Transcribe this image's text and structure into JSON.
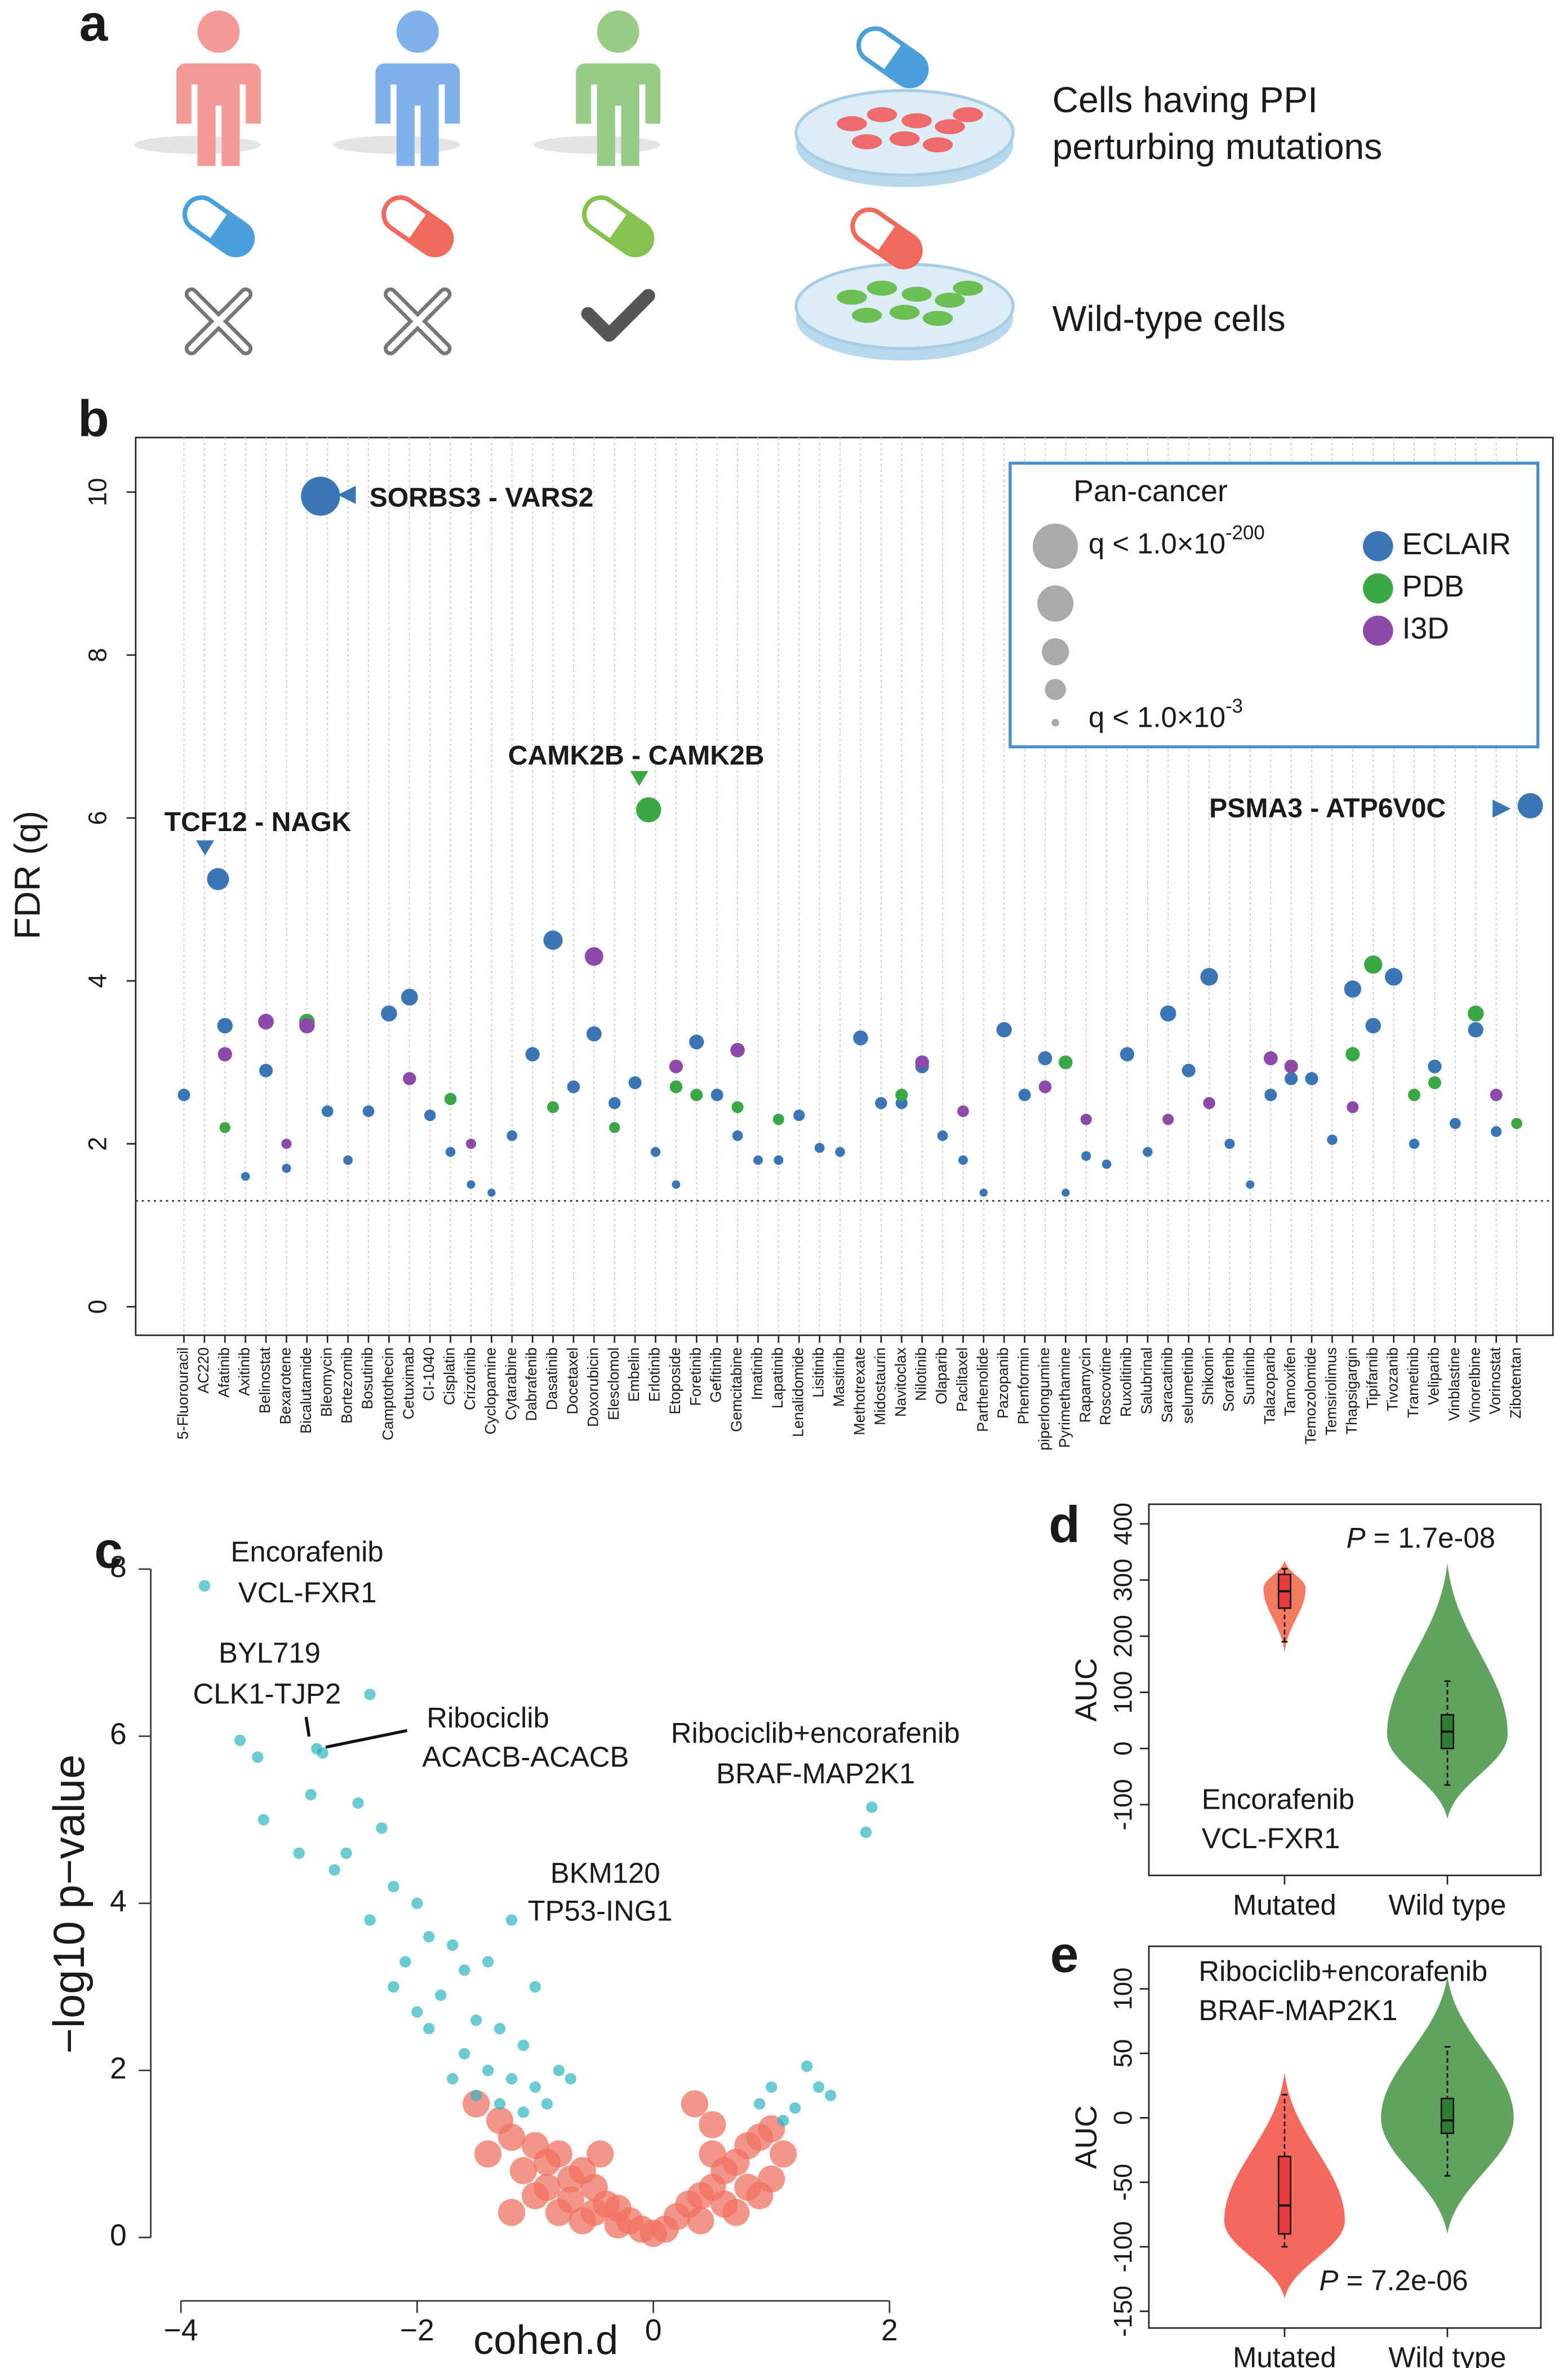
{
  "panel_a": {
    "panel_label": "a",
    "mutant_text": [
      "Cells having PPI",
      "perturbing mutations"
    ],
    "wildtype_text": "Wild-type cells"
  },
  "chart_data": [
    {
      "type": "strip",
      "panel_label": "b",
      "ylabel": "FDR (q)",
      "categories": [
        "5-Fluorouracil",
        "AC220",
        "Afatinib",
        "Axitinib",
        "Belinostat",
        "Bexarotene",
        "Bicalutamide",
        "Bleomycin",
        "Bortezomib",
        "Bosutinib",
        "Camptothecin",
        "Cetuximab",
        "CI-1040",
        "Cisplatin",
        "Crizotinib",
        "Cyclopamine",
        "Cytarabine",
        "Dabrafenib",
        "Dasatinib",
        "Docetaxel",
        "Doxorubicin",
        "Elesclomol",
        "Embelin",
        "Erlotinib",
        "Etoposide",
        "Foretinib",
        "Gefitinib",
        "Gemcitabine",
        "Imatinib",
        "Lapatinib",
        "Lenalidomide",
        "Lisitinib",
        "Masitinib",
        "Methotrexate",
        "Midostaurin",
        "Navitoclax",
        "Nilotinib",
        "Olaparib",
        "Paclitaxel",
        "Parthenolide",
        "Pazopanib",
        "Phenformin",
        "piperlongumine",
        "Pyrimethamine",
        "Rapamycin",
        "Roscovitine",
        "Ruxolitinib",
        "Salubrinal",
        "Saracatinib",
        "selumetinib",
        "Shikonin",
        "Sorafenib",
        "Sunitinib",
        "Talazoparib",
        "Tamoxifen",
        "Temozolomide",
        "Temsirolimus",
        "Thapsigargin",
        "Tipifarnib",
        "Tivozanib",
        "Trametinib",
        "Veliparib",
        "Vinblastine",
        "Vinorelbine",
        "Vorinostat",
        "Zibotentan"
      ],
      "series": [
        {
          "name": "ECLAIR",
          "color": "#3a76b6",
          "values": [
            2.6,
            5.25,
            3.45,
            1.6,
            2.9,
            1.7,
            9.95,
            2.4,
            1.8,
            2.4,
            3.6,
            3.8,
            2.35,
            1.9,
            1.5,
            1.4,
            2.1,
            3.1,
            4.5,
            2.7,
            3.35,
            2.5,
            2.75,
            1.9,
            1.5,
            3.25,
            2.6,
            2.1,
            1.8,
            1.8,
            2.35,
            1.95,
            1.9,
            3.3,
            2.5,
            2.5,
            2.95,
            2.1,
            1.8,
            1.4,
            3.4,
            2.6,
            3.05,
            1.4,
            1.85,
            1.75,
            3.1,
            1.9,
            3.6,
            2.9,
            4.05,
            2.0,
            1.5,
            2.6,
            2.8,
            2.8,
            2.05,
            3.9,
            3.45,
            4.05,
            2.0,
            2.95,
            2.25,
            3.4,
            2.15,
            6.15
          ]
        },
        {
          "name": "PDB",
          "color": "#3aa845",
          "values": [
            null,
            null,
            2.2,
            null,
            null,
            null,
            3.5,
            null,
            null,
            null,
            null,
            null,
            null,
            2.55,
            null,
            null,
            null,
            null,
            2.45,
            null,
            null,
            2.2,
            6.1,
            null,
            2.7,
            2.6,
            null,
            2.45,
            null,
            2.3,
            null,
            null,
            null,
            null,
            null,
            2.6,
            null,
            null,
            null,
            null,
            null,
            null,
            null,
            3.0,
            null,
            null,
            null,
            null,
            null,
            null,
            null,
            null,
            null,
            null,
            null,
            null,
            null,
            3.1,
            4.2,
            null,
            2.6,
            2.75,
            null,
            3.6,
            null,
            2.25
          ]
        },
        {
          "name": "I3D",
          "color": "#8e4aa8",
          "values": [
            null,
            null,
            3.1,
            null,
            3.5,
            2.0,
            3.45,
            null,
            null,
            null,
            null,
            2.8,
            null,
            null,
            2.0,
            null,
            null,
            null,
            null,
            null,
            4.3,
            null,
            null,
            null,
            2.95,
            null,
            null,
            3.15,
            null,
            null,
            null,
            null,
            null,
            null,
            null,
            null,
            3.0,
            null,
            2.4,
            null,
            null,
            null,
            2.7,
            null,
            2.3,
            null,
            null,
            null,
            2.3,
            null,
            2.5,
            null,
            null,
            3.05,
            2.95,
            null,
            null,
            2.45,
            null,
            null,
            null,
            null,
            null,
            null,
            2.6,
            null
          ]
        }
      ],
      "ylim": [
        -0.35,
        10.67
      ],
      "yticks": [
        0,
        2,
        4,
        6,
        8,
        10
      ],
      "threshold": 1.3,
      "annotations": [
        "TCF12 - NAGK",
        "SORBS3 - VARS2",
        "CAMK2B - CAMK2B",
        "PSMA3 - ATP6V0C"
      ],
      "legend": {
        "title": "Pan-cancer",
        "size_labels": [
          {
            "prefix": "q < 1.0×10",
            "exponent": "-200"
          },
          {
            "prefix": "q < 1.0×10",
            "exponent": "-3"
          }
        ]
      }
    },
    {
      "type": "scatter",
      "panel_label": "c",
      "xlabel": "cohen.d",
      "ylabel": "−log10 p−value",
      "xlim": [
        -4,
        2
      ],
      "ylim": [
        0,
        8
      ],
      "xticks": [
        {
          "value": -4,
          "label": "−4"
        },
        {
          "value": -2,
          "label": "−2"
        },
        0,
        2
      ],
      "yticks": [
        0,
        2,
        4,
        6,
        8
      ],
      "series": [
        {
          "color": "#f07262",
          "x": [
            -1.5,
            -1.3,
            -1.2,
            -1.0,
            -0.9,
            -0.8,
            -0.7,
            -0.6,
            -0.5,
            -0.4,
            -0.3,
            -0.2,
            -0.1,
            0,
            -1.1,
            -0.9,
            -0.7,
            -0.5,
            -0.3,
            -1.0,
            -0.6,
            -0.8,
            -0.45,
            0.1,
            0.2,
            0.3,
            0.4,
            0.5,
            0.6,
            0.7,
            0.8,
            0.9,
            1.0,
            1.1,
            0.4,
            0.6,
            0.8,
            1.0,
            0.5,
            0.35,
            0.5,
            0.7,
            0.9,
            -1.2,
            -1.4
          ],
          "y": [
            1.6,
            1.4,
            1.2,
            1.1,
            0.9,
            1.0,
            0.7,
            0.8,
            0.6,
            0.4,
            0.35,
            0.2,
            0.1,
            0.05,
            0.8,
            0.6,
            0.45,
            0.3,
            0.15,
            0.5,
            0.2,
            0.3,
            1.0,
            0.1,
            0.25,
            0.4,
            0.5,
            0.6,
            0.8,
            0.9,
            1.1,
            1.2,
            1.3,
            1.0,
            0.2,
            0.4,
            0.6,
            0.7,
            1.0,
            1.6,
            1.35,
            0.3,
            0.5,
            0.3,
            1.0
          ]
        },
        {
          "color": "#2bb5c0",
          "x": [
            -3.8,
            -3.5,
            -3.35,
            -2.85,
            -2.8,
            -2.4,
            -2.9,
            -2.5,
            -2.3,
            -3.0,
            -2.7,
            -2.6,
            -2.2,
            -2.0,
            -2.4,
            -1.9,
            -1.7,
            -2.1,
            -1.6,
            -1.4,
            -1.0,
            -1.2,
            -1.8,
            -1.5,
            -1.3,
            -1.1,
            -1.9,
            -1.6,
            -1.4,
            -1.2,
            -1.0,
            -0.8,
            -1.7,
            -1.5,
            -1.3,
            -1.1,
            -0.9,
            -2.2,
            -2.0,
            -0.7,
            1.85,
            1.8,
            1.0,
            1.3,
            1.5,
            1.2,
            1.1,
            1.4,
            0.9,
            -3.3
          ],
          "y": [
            7.8,
            5.95,
            5.75,
            5.85,
            5.8,
            6.5,
            5.3,
            5.2,
            4.9,
            4.6,
            4.4,
            4.6,
            4.2,
            4.0,
            3.8,
            3.6,
            3.5,
            3.3,
            3.2,
            3.3,
            3.0,
            3.8,
            2.9,
            2.6,
            2.5,
            2.3,
            2.5,
            2.2,
            2.0,
            1.9,
            1.8,
            2.0,
            1.9,
            1.7,
            1.6,
            1.5,
            1.6,
            3.0,
            2.7,
            1.9,
            5.15,
            4.85,
            1.8,
            2.05,
            1.7,
            1.55,
            1.4,
            1.8,
            1.6,
            5.0
          ]
        }
      ],
      "annotations": [
        [
          "Encorafenib",
          "VCL-FXR1"
        ],
        [
          "BYL719",
          "CLK1-TJP2"
        ],
        [
          "Ribociclib",
          "ACACB-ACACB"
        ],
        [
          "Ribociclib+encorafenib",
          "BRAF-MAP2K1"
        ],
        [
          "BKM120",
          "TP53-ING1"
        ]
      ]
    },
    {
      "type": "violin",
      "panel_label": "d",
      "ylabel": "AUC",
      "categories": [
        "Mutated",
        "Wild type"
      ],
      "ylim": [
        -226,
        435
      ],
      "yticks": [
        -100,
        0,
        100,
        200,
        300,
        400
      ],
      "groups": [
        {
          "violin": {
            "min": 170,
            "max": 335,
            "mode": 285
          },
          "box": {
            "whisker_low": 190,
            "q1": 250,
            "median": 280,
            "q3": 310,
            "whisker_high": 320
          }
        },
        {
          "violin": {
            "min": -125,
            "max": 330,
            "mode": 25
          },
          "box": {
            "whisker_low": -65,
            "q1": 0,
            "median": 30,
            "q3": 60,
            "whisker_high": 120
          }
        }
      ],
      "violin_colors": [
        "#f47a62",
        "#5fa35f"
      ],
      "box_colors": [
        "#e83b3b",
        "#2e7d32"
      ],
      "p_text": {
        "symbol": "P",
        "value": " = 1.7e-08"
      },
      "annotation": [
        "Encorafenib",
        "VCL-FXR1"
      ]
    },
    {
      "type": "violin",
      "panel_label": "e",
      "ylabel": "AUC",
      "categories": [
        "Mutated",
        "Wild type"
      ],
      "ylim": [
        -163,
        133
      ],
      "yticks": [
        -150,
        -100,
        -50,
        0,
        50,
        100
      ],
      "groups": [
        {
          "violin": {
            "min": -140,
            "max": 35,
            "mode": -80
          },
          "box": {
            "whisker_low": -100,
            "q1": -90,
            "median": -68,
            "q3": -30,
            "whisker_high": 18
          }
        },
        {
          "violin": {
            "min": -90,
            "max": 110,
            "mode": 0
          },
          "box": {
            "whisker_low": -45,
            "q1": -12,
            "median": -2,
            "q3": 15,
            "whisker_high": 55
          }
        }
      ],
      "violin_colors": [
        "#f4685e",
        "#5fa35f"
      ],
      "box_colors": [
        "#e83b3b",
        "#2e7d32"
      ],
      "p_text": {
        "symbol": "P",
        "value": " = 7.2e-06"
      },
      "annotation": [
        "Ribociclib+encorafenib",
        "BRAF-MAP2K1"
      ]
    }
  ]
}
